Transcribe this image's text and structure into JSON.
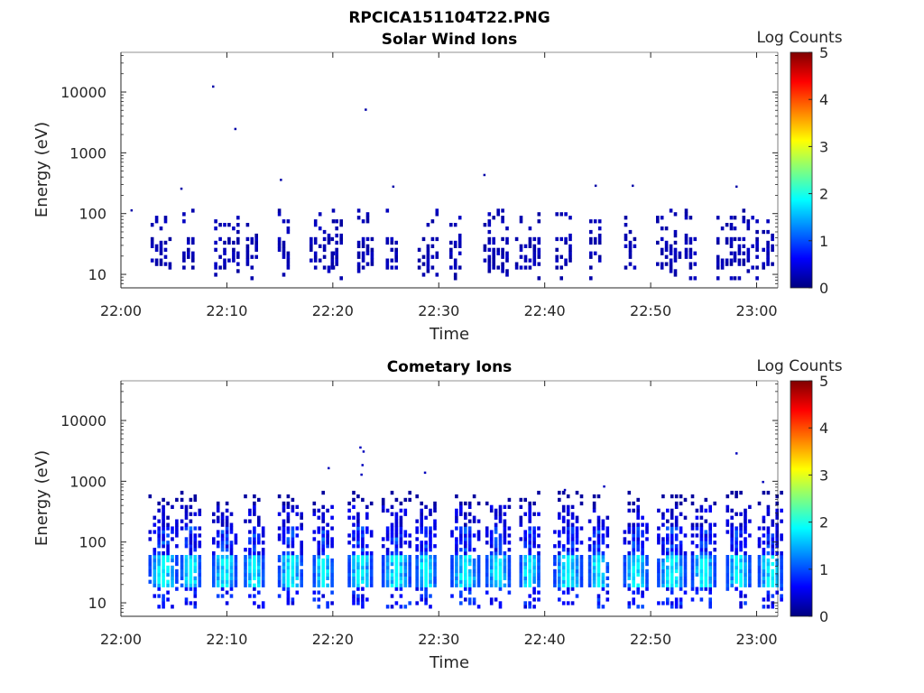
{
  "figure": {
    "title": "RPCICA151104T22.PNG"
  },
  "colorscale": {
    "name": "jet",
    "min": 0,
    "max": 5,
    "stops": [
      "#00007f",
      "#0000ff",
      "#007fff",
      "#00ffff",
      "#7fff7f",
      "#ffff00",
      "#ff7f00",
      "#ff0000",
      "#7f0000"
    ]
  },
  "chart_data": [
    {
      "type": "heatmap",
      "title": "Solar Wind Ions",
      "xlabel": "Time",
      "ylabel": "Energy (eV)",
      "colorbar_label": "Log Counts",
      "xlim_min": [
        0,
        62
      ],
      "x_ticks_min": [
        0,
        10,
        20,
        30,
        40,
        50,
        60
      ],
      "x_tick_labels": [
        "22:00",
        "22:10",
        "22:20",
        "22:30",
        "22:40",
        "22:50",
        "23:00"
      ],
      "ylim": [
        6,
        45000
      ],
      "yscale": "log",
      "y_ticks": [
        10,
        100,
        1000,
        10000
      ],
      "y_tick_labels": [
        "10",
        "100",
        "1000",
        "10000"
      ],
      "colorbar_ticks": [
        0,
        1,
        2,
        3,
        4,
        5
      ],
      "colorbar_tick_labels": [
        "0",
        "1",
        "2",
        "3",
        "4",
        "5"
      ],
      "log_counts_note": "all cells near the minimum of the scale",
      "bursts_min": [
        2.8,
        5.8,
        8.8,
        11.8,
        14.8,
        17.8,
        19.8,
        22.3,
        25.0,
        28.0,
        31.0,
        34.2,
        37.2,
        41.0,
        44.2,
        47.5,
        50.5,
        53.2,
        56.2,
        57.8,
        60.5
      ],
      "scattered_points": [
        {
          "t": 0.9,
          "E": 110,
          "v": 0.2
        },
        {
          "t": 8.6,
          "E": 12000,
          "v": 0.2
        },
        {
          "t": 10.7,
          "E": 2400,
          "v": 0.2
        },
        {
          "t": 23.0,
          "E": 5000,
          "v": 0.2
        },
        {
          "t": 34.2,
          "E": 420,
          "v": 0.2
        },
        {
          "t": 15.0,
          "E": 350,
          "v": 0.2
        },
        {
          "t": 5.6,
          "E": 250,
          "v": 0.2
        },
        {
          "t": 25.6,
          "E": 270,
          "v": 0.2
        },
        {
          "t": 44.7,
          "E": 280,
          "v": 0.2
        },
        {
          "t": 48.2,
          "E": 280,
          "v": 0.2
        },
        {
          "t": 58.0,
          "E": 270,
          "v": 0.2
        }
      ]
    },
    {
      "type": "heatmap",
      "title": "Cometary Ions",
      "xlabel": "Time",
      "ylabel": "Energy (eV)",
      "colorbar_label": "Log Counts",
      "xlim_min": [
        0,
        62
      ],
      "x_ticks_min": [
        0,
        10,
        20,
        30,
        40,
        50,
        60
      ],
      "x_tick_labels": [
        "22:00",
        "22:10",
        "22:20",
        "22:30",
        "22:40",
        "22:50",
        "23:00"
      ],
      "ylim": [
        6,
        45000
      ],
      "yscale": "log",
      "y_ticks": [
        10,
        100,
        1000,
        10000
      ],
      "y_tick_labels": [
        "10",
        "100",
        "1000",
        "10000"
      ],
      "colorbar_ticks": [
        0,
        1,
        2,
        3,
        4,
        5
      ],
      "colorbar_tick_labels": [
        "0",
        "1",
        "2",
        "3",
        "4",
        "5"
      ],
      "bursts_min": [
        3.0,
        6.0,
        9.0,
        12.0,
        15.2,
        18.5,
        21.8,
        25.0,
        28.2,
        31.5,
        34.8,
        38.0,
        41.2,
        44.5,
        47.8,
        51.0,
        54.2,
        57.5,
        60.5
      ],
      "peak_log_counts": 1.8,
      "scattered_points": [
        {
          "t": 19.5,
          "E": 1600,
          "v": 0.3
        },
        {
          "t": 22.5,
          "E": 3500,
          "v": 0.3
        },
        {
          "t": 22.8,
          "E": 3000,
          "v": 0.3
        },
        {
          "t": 22.7,
          "E": 1800,
          "v": 0.3
        },
        {
          "t": 22.6,
          "E": 1250,
          "v": 0.3
        },
        {
          "t": 28.6,
          "E": 1350,
          "v": 0.3
        },
        {
          "t": 58.0,
          "E": 2800,
          "v": 0.3
        },
        {
          "t": 60.5,
          "E": 950,
          "v": 0.3
        },
        {
          "t": 41.8,
          "E": 700,
          "v": 0.3
        },
        {
          "t": 45.5,
          "E": 800,
          "v": 0.3
        }
      ]
    }
  ]
}
